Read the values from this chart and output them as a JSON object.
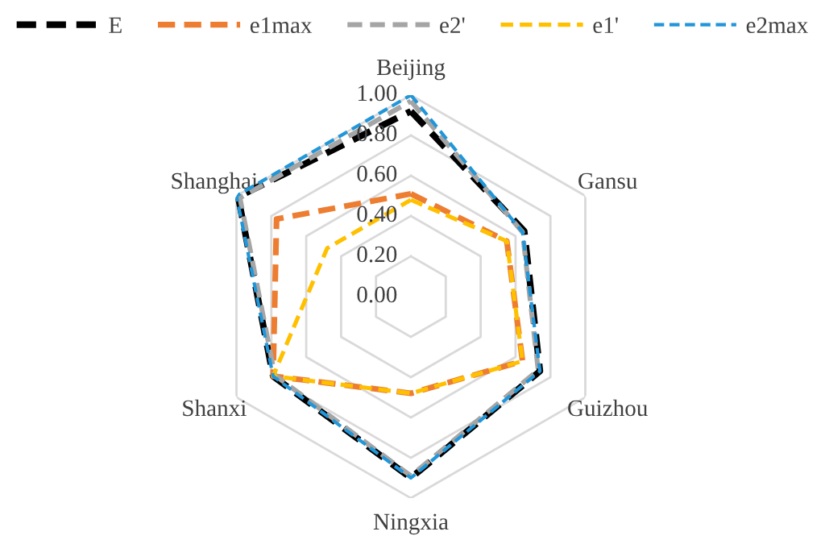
{
  "chart_data": {
    "type": "radar",
    "categories": [
      "Beijing",
      "Gansu",
      "Guizhou",
      "Ningxia",
      "Shanxi",
      "Shanghai"
    ],
    "series": [
      {
        "name": "E",
        "color": "#000000",
        "values": [
          0.92,
          0.65,
          0.74,
          0.9,
          0.79,
          0.99
        ]
      },
      {
        "name": "e1max",
        "color": "#ed7d31",
        "values": [
          0.51,
          0.55,
          0.64,
          0.48,
          0.79,
          0.77
        ]
      },
      {
        "name": "e2'",
        "color": "#a5a5a5",
        "values": [
          0.97,
          0.64,
          0.73,
          0.89,
          0.78,
          0.98
        ]
      },
      {
        "name": "e1'",
        "color": "#ffc000",
        "values": [
          0.48,
          0.55,
          0.64,
          0.48,
          0.79,
          0.48
        ]
      },
      {
        "name": "e2max",
        "color": "#2196d8",
        "values": [
          1.0,
          0.64,
          0.74,
          0.9,
          0.79,
          1.0
        ]
      }
    ],
    "ylim": [
      0,
      1.0
    ],
    "yticks": [
      {
        "value": 0,
        "label": "0.00"
      },
      {
        "value": 0.2,
        "label": "0.20"
      },
      {
        "value": 0.4,
        "label": "0.40"
      },
      {
        "value": 0.6,
        "label": "0.60"
      },
      {
        "value": 0.8,
        "label": "0.80"
      },
      {
        "value": 1.0,
        "label": "1.00"
      }
    ],
    "grid": true,
    "legend": "top",
    "line_style": "dashed"
  }
}
